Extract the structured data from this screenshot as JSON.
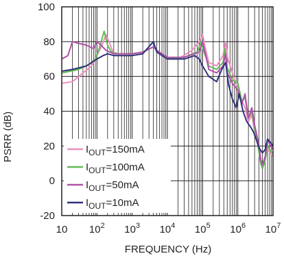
{
  "chart_data": {
    "type": "line",
    "xscale": "log",
    "xlim": [
      10,
      10000000
    ],
    "ylim": [
      -20,
      100
    ],
    "xlabel": "FREQUENCY (Hz)",
    "ylabel": "PSRR (dB)",
    "grid": true,
    "legend_position": "bottom-left",
    "x_ticks": [
      {
        "value": 10,
        "base": "10",
        "exp": ""
      },
      {
        "value": 100,
        "base": "10",
        "exp": "2"
      },
      {
        "value": 1000,
        "base": "10",
        "exp": "3"
      },
      {
        "value": 10000,
        "base": "10",
        "exp": "4"
      },
      {
        "value": 100000,
        "base": "10",
        "exp": "5"
      },
      {
        "value": 1000000,
        "base": "10",
        "exp": "6"
      },
      {
        "value": 10000000,
        "base": "10",
        "exp": "7"
      }
    ],
    "y_ticks": [
      {
        "value": -20,
        "label": "-20"
      },
      {
        "value": 0,
        "label": "0"
      },
      {
        "value": 20,
        "label": "20"
      },
      {
        "value": 40,
        "label": "40"
      },
      {
        "value": 60,
        "label": "60"
      },
      {
        "value": 80,
        "label": "80"
      },
      {
        "value": 100,
        "label": "100"
      }
    ],
    "series": [
      {
        "name": "IOUT=150mA",
        "label_main": "I",
        "label_sub": "OUT",
        "label_rest": "=150mA",
        "color": "#f08cc0",
        "points": [
          [
            10,
            56
          ],
          [
            20,
            57
          ],
          [
            40,
            62
          ],
          [
            70,
            66
          ],
          [
            100,
            72
          ],
          [
            140,
            78
          ],
          [
            180,
            84
          ],
          [
            220,
            80
          ],
          [
            300,
            73
          ],
          [
            1000,
            73
          ],
          [
            2000,
            74
          ],
          [
            4000,
            77
          ],
          [
            5000,
            75
          ],
          [
            8000,
            71
          ],
          [
            20000,
            70
          ],
          [
            50000,
            75
          ],
          [
            80000,
            80
          ],
          [
            100000,
            84
          ],
          [
            120000,
            76
          ],
          [
            150000,
            68
          ],
          [
            250000,
            66
          ],
          [
            380000,
            72
          ],
          [
            450000,
            80
          ],
          [
            520000,
            70
          ],
          [
            700000,
            62
          ],
          [
            900000,
            55
          ],
          [
            1100000,
            52
          ],
          [
            1300000,
            46
          ],
          [
            1600000,
            42
          ],
          [
            2000000,
            34
          ],
          [
            2500000,
            38
          ],
          [
            3000000,
            28
          ],
          [
            3500000,
            24
          ],
          [
            4000000,
            18
          ],
          [
            4500000,
            12
          ],
          [
            5000000,
            8
          ],
          [
            6000000,
            14
          ],
          [
            7000000,
            18
          ],
          [
            8500000,
            16
          ],
          [
            10000000,
            14
          ]
        ]
      },
      {
        "name": "IOUT=100mA",
        "label_main": "I",
        "label_sub": "OUT",
        "label_rest": "=100mA",
        "color": "#62b856",
        "points": [
          [
            10,
            62
          ],
          [
            30,
            64
          ],
          [
            60,
            67
          ],
          [
            90,
            70
          ],
          [
            120,
            77
          ],
          [
            160,
            86
          ],
          [
            200,
            78
          ],
          [
            260,
            74
          ],
          [
            400,
            73
          ],
          [
            1000,
            73
          ],
          [
            2000,
            74
          ],
          [
            4000,
            77
          ],
          [
            5000,
            75
          ],
          [
            10000,
            70
          ],
          [
            30000,
            71
          ],
          [
            70000,
            74
          ],
          [
            90000,
            80
          ],
          [
            110000,
            74
          ],
          [
            150000,
            66
          ],
          [
            250000,
            64
          ],
          [
            380000,
            68
          ],
          [
            430000,
            76
          ],
          [
            500000,
            65
          ],
          [
            700000,
            58
          ],
          [
            1000000,
            56
          ],
          [
            1300000,
            46
          ],
          [
            1600000,
            48
          ],
          [
            2000000,
            36
          ],
          [
            2500000,
            40
          ],
          [
            3000000,
            30
          ],
          [
            3500000,
            24
          ],
          [
            4000000,
            16
          ],
          [
            4500000,
            10
          ],
          [
            5000000,
            7
          ],
          [
            6000000,
            12
          ],
          [
            7000000,
            20
          ],
          [
            8500000,
            17
          ],
          [
            10000000,
            16
          ]
        ]
      },
      {
        "name": "IOUT=50mA",
        "label_main": "I",
        "label_sub": "OUT",
        "label_rest": "=50mA",
        "color": "#b04fa8",
        "points": [
          [
            10,
            70
          ],
          [
            15,
            72
          ],
          [
            20,
            80
          ],
          [
            30,
            79
          ],
          [
            50,
            78
          ],
          [
            80,
            76
          ],
          [
            100,
            80
          ],
          [
            130,
            78
          ],
          [
            180,
            75
          ],
          [
            300,
            73
          ],
          [
            1000,
            73
          ],
          [
            2000,
            74
          ],
          [
            4000,
            77
          ],
          [
            5000,
            75
          ],
          [
            10000,
            71
          ],
          [
            30000,
            71
          ],
          [
            80000,
            74
          ],
          [
            100000,
            80
          ],
          [
            120000,
            73
          ],
          [
            150000,
            64
          ],
          [
            250000,
            62
          ],
          [
            380000,
            66
          ],
          [
            450000,
            73
          ],
          [
            500000,
            62
          ],
          [
            700000,
            56
          ],
          [
            1000000,
            52
          ],
          [
            1300000,
            44
          ],
          [
            1600000,
            50
          ],
          [
            2000000,
            36
          ],
          [
            2500000,
            42
          ],
          [
            3000000,
            32
          ],
          [
            3500000,
            26
          ],
          [
            4000000,
            20
          ],
          [
            4500000,
            12
          ],
          [
            5000000,
            9
          ],
          [
            6000000,
            14
          ],
          [
            7000000,
            24
          ],
          [
            8500000,
            20
          ],
          [
            10000000,
            18
          ]
        ]
      },
      {
        "name": "IOUT=10mA",
        "label_main": "I",
        "label_sub": "OUT",
        "label_rest": "=10mA",
        "color": "#2e3179",
        "points": [
          [
            10,
            63
          ],
          [
            20,
            64
          ],
          [
            50,
            66
          ],
          [
            100,
            70
          ],
          [
            150,
            72
          ],
          [
            200,
            73
          ],
          [
            300,
            72
          ],
          [
            1000,
            72
          ],
          [
            2000,
            73
          ],
          [
            4000,
            80
          ],
          [
            5000,
            74
          ],
          [
            10000,
            70
          ],
          [
            30000,
            70
          ],
          [
            60000,
            72
          ],
          [
            80000,
            70
          ],
          [
            100000,
            66
          ],
          [
            150000,
            60
          ],
          [
            250000,
            57
          ],
          [
            350000,
            64
          ],
          [
            450000,
            68
          ],
          [
            550000,
            55
          ],
          [
            700000,
            47
          ],
          [
            900000,
            42
          ],
          [
            1100000,
            50
          ],
          [
            1400000,
            40
          ],
          [
            1800000,
            34
          ],
          [
            2300000,
            31
          ],
          [
            2800000,
            28
          ],
          [
            3300000,
            24
          ],
          [
            4000000,
            19
          ],
          [
            5000000,
            16
          ],
          [
            6000000,
            18
          ],
          [
            7000000,
            24
          ],
          [
            8500000,
            22
          ],
          [
            10000000,
            20
          ]
        ]
      }
    ]
  }
}
